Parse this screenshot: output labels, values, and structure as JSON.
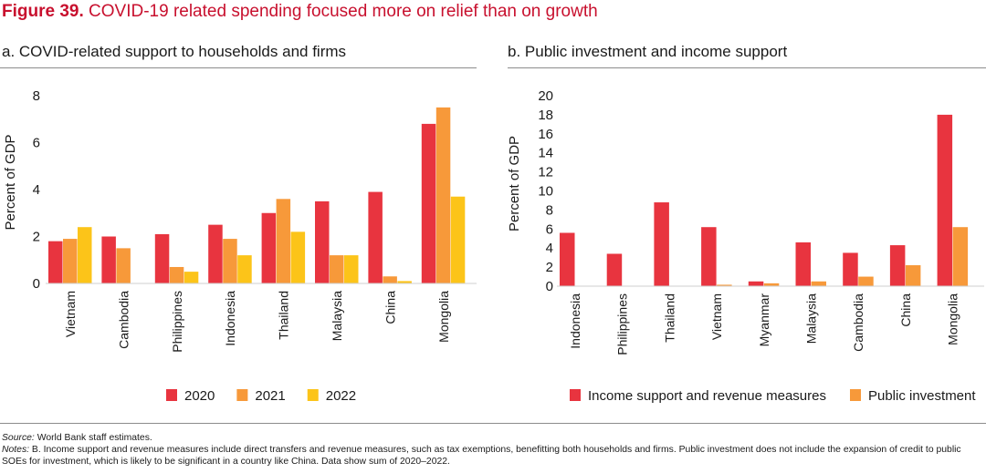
{
  "figure": {
    "number": "Figure 39.",
    "title": "COVID-19 related spending focused more on relief than on growth"
  },
  "notes": {
    "source_label": "Source:",
    "source_text": "World Bank staff estimates.",
    "notes_label": "Notes:",
    "notes_text": "B. Income support and revenue measures include direct transfers and revenue measures, such as tax exemptions, benefitting both households and firms. Public investment does not include the expansion of credit to public SOEs for investment, which is likely to be significant in a country like China. Data show sum of 2020–2022."
  },
  "colors": {
    "red": "#e8343f",
    "orange": "#f7993a",
    "yellow": "#fcc419",
    "title_red": "#c8102e"
  },
  "chart_data": [
    {
      "type": "bar",
      "title": "a. COVID-related support to households and firms",
      "ylabel": "Percent of GDP",
      "xlabel": "",
      "ylim": [
        0,
        8
      ],
      "yticks": [
        0,
        2,
        4,
        6,
        8
      ],
      "grid": false,
      "legend_position": "bottom",
      "categories": [
        "Vietnam",
        "Cambodia",
        "Philippines",
        "Indonesia",
        "Thailand",
        "Malaysia",
        "China",
        "Mongolia"
      ],
      "series": [
        {
          "name": "2020",
          "color": "#e8343f",
          "values": [
            1.8,
            2.0,
            2.1,
            2.5,
            3.0,
            3.5,
            3.9,
            6.8
          ]
        },
        {
          "name": "2021",
          "color": "#f7993a",
          "values": [
            1.9,
            1.5,
            0.7,
            1.9,
            3.6,
            1.2,
            0.3,
            7.5
          ]
        },
        {
          "name": "2022",
          "color": "#fcc419",
          "values": [
            2.4,
            null,
            0.5,
            1.2,
            2.2,
            1.2,
            0.1,
            3.7
          ]
        }
      ]
    },
    {
      "type": "bar",
      "title": "b. Public investment and income support",
      "ylabel": "Percent of GDP",
      "xlabel": "",
      "ylim": [
        0,
        20
      ],
      "yticks": [
        0,
        2,
        4,
        6,
        8,
        10,
        12,
        14,
        16,
        18,
        20
      ],
      "grid": false,
      "legend_position": "bottom",
      "categories": [
        "Indonesia",
        "Philippines",
        "Thailand",
        "Vietnam",
        "Myanmar",
        "Malaysia",
        "Cambodia",
        "China",
        "Mongolia"
      ],
      "series": [
        {
          "name": "Income support and revenue measures",
          "color": "#e8343f",
          "values": [
            5.6,
            3.4,
            8.8,
            6.2,
            0.5,
            4.6,
            3.5,
            4.3,
            18.0
          ]
        },
        {
          "name": "Public investment",
          "color": "#f7993a",
          "values": [
            0.0,
            0.0,
            0.0,
            0.15,
            0.3,
            0.5,
            1.0,
            2.2,
            6.2
          ]
        }
      ]
    }
  ]
}
